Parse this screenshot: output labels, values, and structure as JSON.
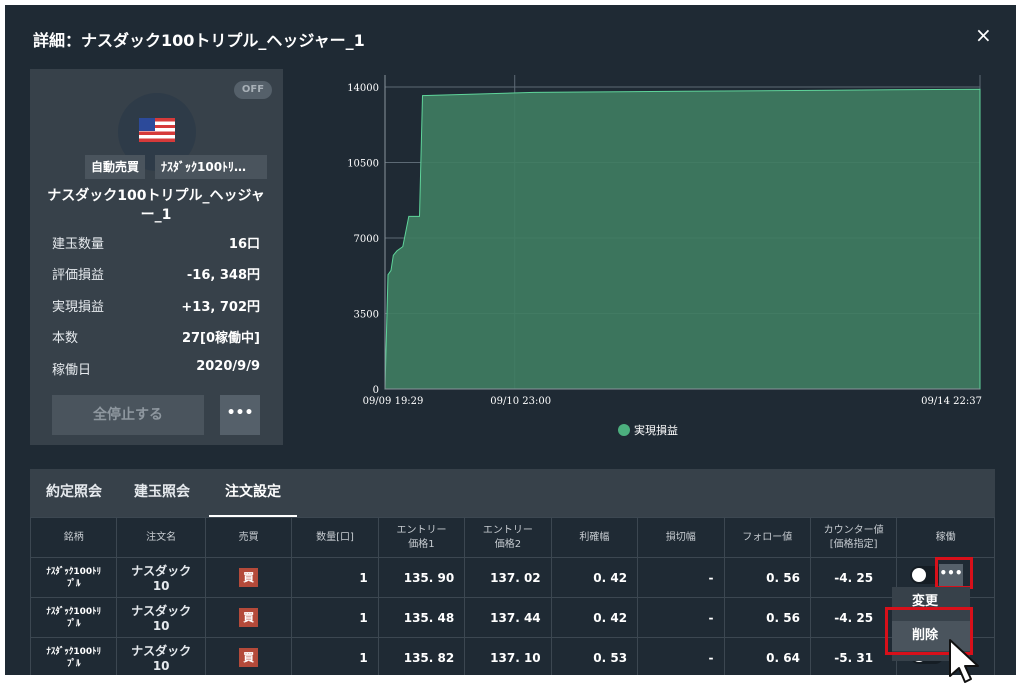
{
  "window": {
    "title": "詳細：ナスダック100トリプル_ヘッジャー_1",
    "close_label": "×"
  },
  "summary": {
    "status_badge": "OFF",
    "tags": [
      "自動売買",
      "ﾅｽﾀﾞｯｸ100ﾄﾘ…"
    ],
    "name_line1": "ナスダック100トリプル_ヘッジャ",
    "name_line2": "ー_1",
    "rows": [
      {
        "label": "建玉数量",
        "value": "16口"
      },
      {
        "label": "評価損益",
        "value": "-16, 348円"
      },
      {
        "label": "実現損益",
        "value": "+13, 702円"
      },
      {
        "label": "本数",
        "value": "27[0稼働中]"
      },
      {
        "label": "稼働日",
        "value": "2020/9/9"
      }
    ],
    "stop_all_label": "全停止する",
    "more_label": "•••"
  },
  "chart_data": {
    "type": "area",
    "y_ticks": [
      "14000",
      "10500",
      "7000",
      "3500",
      "0"
    ],
    "x_ticks": [
      "09/09 19:29",
      "09/10 23:00",
      "09/14 22:37"
    ],
    "ylim": [
      0,
      14000
    ],
    "series": [
      {
        "name": "実現損益",
        "color": "#3f7d62",
        "points": [
          [
            0.0,
            0
          ],
          [
            0.005,
            5300
          ],
          [
            0.01,
            5500
          ],
          [
            0.014,
            6200
          ],
          [
            0.02,
            6400
          ],
          [
            0.03,
            6600
          ],
          [
            0.04,
            8000
          ],
          [
            0.058,
            8000
          ],
          [
            0.063,
            13600
          ],
          [
            0.25,
            13750
          ],
          [
            0.5,
            13800
          ],
          [
            0.75,
            13850
          ],
          [
            1.0,
            13900
          ]
        ]
      }
    ],
    "legend": "bottom-center",
    "grid": true
  },
  "tabs": [
    {
      "label": "約定照会",
      "active": false
    },
    {
      "label": "建玉照会",
      "active": false
    },
    {
      "label": "注文設定",
      "active": true
    }
  ],
  "table": {
    "headers": [
      {
        "l1": "銘柄",
        "l2": ""
      },
      {
        "l1": "注文名",
        "l2": ""
      },
      {
        "l1": "売買",
        "l2": ""
      },
      {
        "l1": "数量[口]",
        "l2": ""
      },
      {
        "l1": "エントリー",
        "l2": "価格1"
      },
      {
        "l1": "エントリー",
        "l2": "価格2"
      },
      {
        "l1": "利確幅",
        "l2": ""
      },
      {
        "l1": "損切幅",
        "l2": ""
      },
      {
        "l1": "フォロー値",
        "l2": ""
      },
      {
        "l1": "カウンター値",
        "l2": "[価格指定]"
      },
      {
        "l1": "稼働",
        "l2": ""
      }
    ],
    "rows": [
      {
        "sym1": "ﾅｽﾀﾞｯｸ100ﾄﾘ",
        "sym2": "ﾌﾟﾙ",
        "name": "ナスダック10",
        "side": "買",
        "qty": "1",
        "e1": "135. 90",
        "e2": "137. 02",
        "tp": "0. 42",
        "sl": "-",
        "follow": "0. 56",
        "counter": "-4. 25"
      },
      {
        "sym1": "ﾅｽﾀﾞｯｸ100ﾄﾘ",
        "sym2": "ﾌﾟﾙ",
        "name": "ナスダック10",
        "side": "買",
        "qty": "1",
        "e1": "135. 48",
        "e2": "137. 44",
        "tp": "0. 42",
        "sl": "-",
        "follow": "0. 56",
        "counter": "-4. 25"
      },
      {
        "sym1": "ﾅｽﾀﾞｯｸ100ﾄﾘ",
        "sym2": "ﾌﾟﾙ",
        "name": "ナスダック10",
        "side": "買",
        "qty": "1",
        "e1": "135. 82",
        "e2": "137. 10",
        "tp": "0. 53",
        "sl": "-",
        "follow": "0. 64",
        "counter": "-5. 31"
      }
    ]
  },
  "row_menu": {
    "more_label": "•••",
    "items": [
      "変更",
      "削除"
    ]
  },
  "colors": {
    "background": "#1f2a34",
    "panel": "#37414a",
    "accent_green": "#4caf7e",
    "buy_red": "#b44a3a",
    "highlight_red": "#d8101a"
  }
}
